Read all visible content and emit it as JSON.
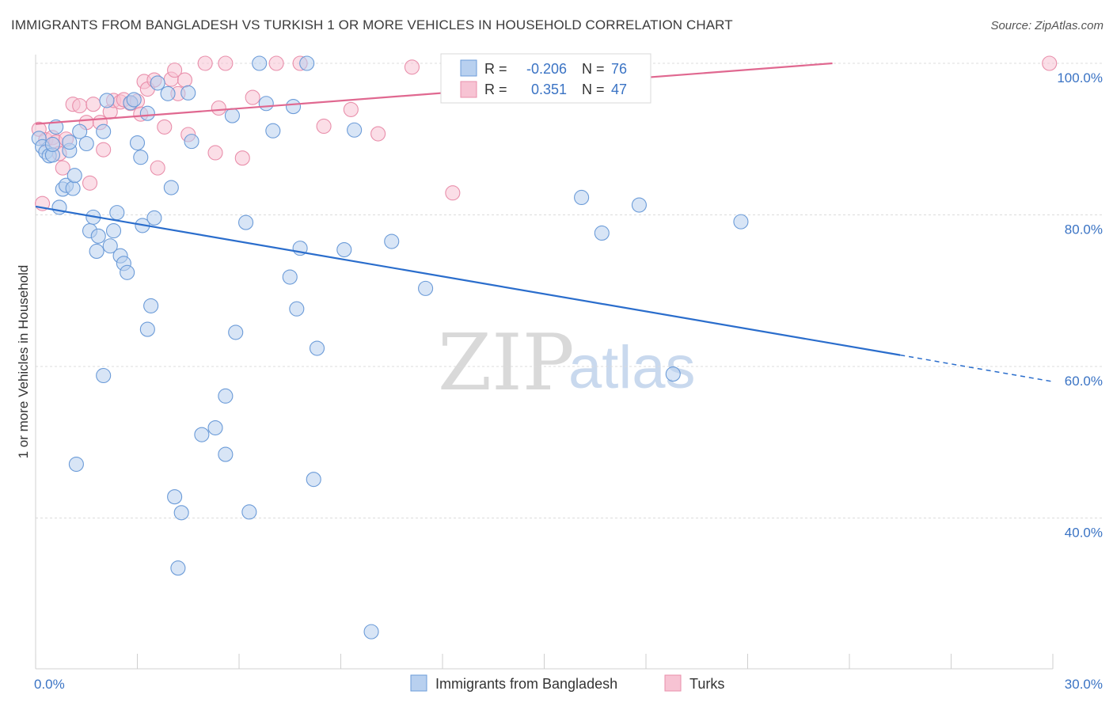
{
  "title": "IMMIGRANTS FROM BANGLADESH VS TURKISH 1 OR MORE VEHICLES IN HOUSEHOLD CORRELATION CHART",
  "source": "Source: ZipAtlas.com",
  "watermark": {
    "zip": "ZIP",
    "atlas": "atlas"
  },
  "colors": {
    "blue_fill": "#b8d0ef",
    "blue_stroke": "#6b9bd8",
    "blue_line": "#2a6dcc",
    "pink_fill": "#f7c3d3",
    "pink_stroke": "#e98fab",
    "pink_line": "#e06890",
    "grid": "#dcdcdc",
    "axis_text": "#3a73c4"
  },
  "chart_data": {
    "type": "scatter",
    "xlabel": "",
    "ylabel": "1 or more Vehicles in Household",
    "xlim": [
      0,
      30
    ],
    "ylim": [
      23,
      100
    ],
    "x_tick_labels": [
      "0.0%",
      "30.0%"
    ],
    "y_ticks": [
      40,
      60,
      80,
      100
    ],
    "y_tick_labels": [
      "40.0%",
      "60.0%",
      "80.0%",
      "100.0%"
    ],
    "legend": {
      "rows": [
        {
          "r_label": "R =",
          "r_value": "-0.206",
          "n_label": "N =",
          "n_value": "76"
        },
        {
          "r_label": "R =",
          "r_value": "0.351",
          "n_label": "N =",
          "n_value": "47"
        }
      ]
    },
    "series": [
      {
        "name": "Immigrants from Bangladesh",
        "color": "#6b9bd8",
        "trend": {
          "x0": 0.0,
          "y0": 81.1,
          "x1": 25.5,
          "y1": 61.5,
          "dash_to_x": 30.0,
          "dash_to_y": 58.0
        },
        "points": [
          [
            0.1,
            90.1
          ],
          [
            0.2,
            89.0
          ],
          [
            0.3,
            88.3
          ],
          [
            0.4,
            87.8
          ],
          [
            0.5,
            87.9
          ],
          [
            0.6,
            91.6
          ],
          [
            0.7,
            81.0
          ],
          [
            0.8,
            83.4
          ],
          [
            0.9,
            83.9
          ],
          [
            1.0,
            88.5
          ],
          [
            1.1,
            83.5
          ],
          [
            1.15,
            85.2
          ],
          [
            1.3,
            91.0
          ],
          [
            1.5,
            89.4
          ],
          [
            1.6,
            77.9
          ],
          [
            1.7,
            79.7
          ],
          [
            1.8,
            75.2
          ],
          [
            1.85,
            77.2
          ],
          [
            2.0,
            91.0
          ],
          [
            2.1,
            95.1
          ],
          [
            2.2,
            75.9
          ],
          [
            2.3,
            77.9
          ],
          [
            2.4,
            80.3
          ],
          [
            2.5,
            74.6
          ],
          [
            2.6,
            73.6
          ],
          [
            2.7,
            72.4
          ],
          [
            2.8,
            94.8
          ],
          [
            2.9,
            95.2
          ],
          [
            3.0,
            89.5
          ],
          [
            3.1,
            87.6
          ],
          [
            3.15,
            78.6
          ],
          [
            3.3,
            93.4
          ],
          [
            3.4,
            68.0
          ],
          [
            3.5,
            79.6
          ],
          [
            3.6,
            97.4
          ],
          [
            3.9,
            96.0
          ],
          [
            4.0,
            83.6
          ],
          [
            4.1,
            42.8
          ],
          [
            4.3,
            40.7
          ],
          [
            4.2,
            33.4
          ],
          [
            4.5,
            96.1
          ],
          [
            4.6,
            89.7
          ],
          [
            4.9,
            51.0
          ],
          [
            5.3,
            51.9
          ],
          [
            5.6,
            56.1
          ],
          [
            5.6,
            48.4
          ],
          [
            5.8,
            93.1
          ],
          [
            5.9,
            64.5
          ],
          [
            6.2,
            79.0
          ],
          [
            6.3,
            40.8
          ],
          [
            6.6,
            100.0
          ],
          [
            6.8,
            94.7
          ],
          [
            7.0,
            91.1
          ],
          [
            7.5,
            71.8
          ],
          [
            7.6,
            94.3
          ],
          [
            7.7,
            67.6
          ],
          [
            7.8,
            75.6
          ],
          [
            8.0,
            100.0
          ],
          [
            8.2,
            45.1
          ],
          [
            8.3,
            62.4
          ],
          [
            9.1,
            75.4
          ],
          [
            9.4,
            91.2
          ],
          [
            9.9,
            25.0
          ],
          [
            10.5,
            76.5
          ],
          [
            11.5,
            70.3
          ],
          [
            12.5,
            100.0
          ],
          [
            16.1,
            82.3
          ],
          [
            16.7,
            77.6
          ],
          [
            17.8,
            81.3
          ],
          [
            18.8,
            59.0
          ],
          [
            20.8,
            79.1
          ],
          [
            1.2,
            47.1
          ],
          [
            2.0,
            58.8
          ],
          [
            3.3,
            64.9
          ],
          [
            1.0,
            89.6
          ],
          [
            0.5,
            89.3
          ]
        ]
      },
      {
        "name": "Turks",
        "color": "#e98fab",
        "trend": {
          "x0": 0.0,
          "y0": 92.0,
          "x1": 23.5,
          "y1": 100.0
        },
        "points": [
          [
            0.1,
            91.3
          ],
          [
            0.2,
            81.5
          ],
          [
            0.3,
            89.9
          ],
          [
            0.5,
            90.2
          ],
          [
            0.6,
            89.6
          ],
          [
            0.7,
            88.1
          ],
          [
            0.8,
            86.2
          ],
          [
            0.9,
            90.0
          ],
          [
            1.1,
            94.6
          ],
          [
            1.3,
            94.4
          ],
          [
            1.5,
            92.2
          ],
          [
            1.6,
            84.2
          ],
          [
            1.7,
            94.6
          ],
          [
            1.9,
            92.2
          ],
          [
            2.0,
            88.6
          ],
          [
            2.2,
            93.6
          ],
          [
            2.3,
            95.1
          ],
          [
            2.5,
            94.9
          ],
          [
            2.6,
            95.2
          ],
          [
            2.8,
            94.7
          ],
          [
            3.0,
            95.0
          ],
          [
            3.1,
            93.3
          ],
          [
            3.2,
            97.6
          ],
          [
            3.3,
            96.6
          ],
          [
            3.5,
            97.8
          ],
          [
            3.6,
            86.2
          ],
          [
            3.8,
            91.6
          ],
          [
            4.0,
            97.9
          ],
          [
            4.1,
            99.1
          ],
          [
            4.2,
            96.0
          ],
          [
            4.4,
            97.8
          ],
          [
            4.5,
            90.6
          ],
          [
            5.0,
            100.0
          ],
          [
            5.3,
            88.2
          ],
          [
            5.4,
            94.1
          ],
          [
            5.6,
            100.0
          ],
          [
            6.1,
            87.5
          ],
          [
            6.4,
            95.5
          ],
          [
            7.1,
            100.0
          ],
          [
            7.8,
            100.0
          ],
          [
            8.5,
            91.7
          ],
          [
            9.3,
            93.9
          ],
          [
            10.1,
            90.7
          ],
          [
            11.1,
            99.5
          ],
          [
            12.3,
            82.9
          ],
          [
            12.4,
            100.0
          ],
          [
            29.9,
            100.0
          ]
        ]
      }
    ]
  }
}
